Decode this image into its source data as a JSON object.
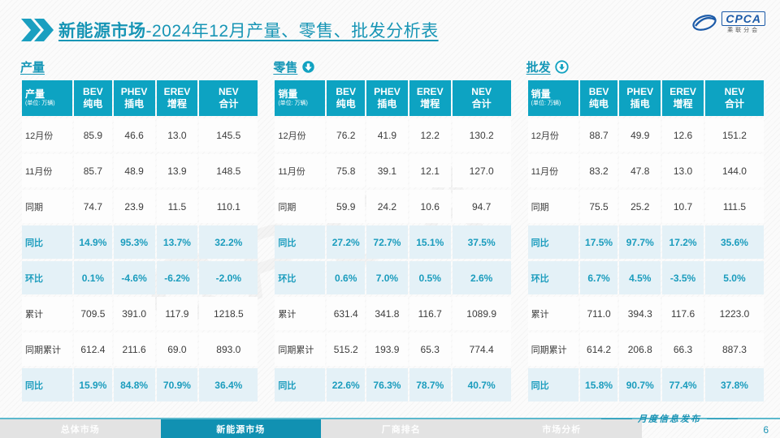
{
  "header": {
    "title_highlight": "新能源市场",
    "title_rest": "-2024年12月产量、零售、批发分析表"
  },
  "logo": {
    "name": "CPCA",
    "subtext": "乘联分会"
  },
  "colors": {
    "teal_header": "#0da3c2",
    "teal_title": "#1697b7",
    "highlight_bg": "#e4f1f7",
    "highlight_text": "#1a9cbd",
    "footer_tab_active": "#1191b2"
  },
  "watermark_text": "CPCA",
  "column_headers": [
    {
      "en": "BEV",
      "zh": "纯电"
    },
    {
      "en": "PHEV",
      "zh": "插电"
    },
    {
      "en": "EREV",
      "zh": "增程"
    },
    {
      "en": "NEV",
      "zh": "合计"
    }
  ],
  "tables": [
    {
      "section_title": "产量",
      "arrow_icon": "none",
      "unit_label": "产量",
      "unit_note": "(单位: 万辆)",
      "rows": [
        {
          "label": "12月份",
          "highlight": false,
          "values": [
            "85.9",
            "46.6",
            "13.0",
            "145.5"
          ]
        },
        {
          "label": "11月份",
          "highlight": false,
          "values": [
            "85.7",
            "48.9",
            "13.9",
            "148.5"
          ]
        },
        {
          "label": "同期",
          "highlight": false,
          "values": [
            "74.7",
            "23.9",
            "11.5",
            "110.1"
          ]
        },
        {
          "label": "同比",
          "highlight": true,
          "values": [
            "14.9%",
            "95.3%",
            "13.7%",
            "32.2%"
          ]
        },
        {
          "label": "环比",
          "highlight": true,
          "values": [
            "0.1%",
            "-4.6%",
            "-6.2%",
            "-2.0%"
          ]
        },
        {
          "label": "累计",
          "highlight": false,
          "values": [
            "709.5",
            "391.0",
            "117.9",
            "1218.5"
          ]
        },
        {
          "label": "同期累计",
          "highlight": false,
          "values": [
            "612.4",
            "211.6",
            "69.0",
            "893.0"
          ]
        },
        {
          "label": "同比",
          "highlight": true,
          "values": [
            "15.9%",
            "84.8%",
            "70.9%",
            "36.4%"
          ]
        }
      ]
    },
    {
      "section_title": "零售",
      "arrow_icon": "filled-circle-down-arrow",
      "unit_label": "销量",
      "unit_note": "(单位: 万辆)",
      "rows": [
        {
          "label": "12月份",
          "highlight": false,
          "values": [
            "76.2",
            "41.9",
            "12.2",
            "130.2"
          ]
        },
        {
          "label": "11月份",
          "highlight": false,
          "values": [
            "75.8",
            "39.1",
            "12.1",
            "127.0"
          ]
        },
        {
          "label": "同期",
          "highlight": false,
          "values": [
            "59.9",
            "24.2",
            "10.6",
            "94.7"
          ]
        },
        {
          "label": "同比",
          "highlight": true,
          "values": [
            "27.2%",
            "72.7%",
            "15.1%",
            "37.5%"
          ]
        },
        {
          "label": "环比",
          "highlight": true,
          "values": [
            "0.6%",
            "7.0%",
            "0.5%",
            "2.6%"
          ]
        },
        {
          "label": "累计",
          "highlight": false,
          "values": [
            "631.4",
            "341.8",
            "116.7",
            "1089.9"
          ]
        },
        {
          "label": "同期累计",
          "highlight": false,
          "values": [
            "515.2",
            "193.9",
            "65.3",
            "774.4"
          ]
        },
        {
          "label": "同比",
          "highlight": true,
          "values": [
            "22.6%",
            "76.3%",
            "78.7%",
            "40.7%"
          ]
        }
      ]
    },
    {
      "section_title": "批发",
      "arrow_icon": "outline-circle-down-arrow",
      "unit_label": "销量",
      "unit_note": "(单位: 万辆)",
      "rows": [
        {
          "label": "12月份",
          "highlight": false,
          "values": [
            "88.7",
            "49.9",
            "12.6",
            "151.2"
          ]
        },
        {
          "label": "11月份",
          "highlight": false,
          "values": [
            "83.2",
            "47.8",
            "13.0",
            "144.0"
          ]
        },
        {
          "label": "同期",
          "highlight": false,
          "values": [
            "75.5",
            "25.2",
            "10.7",
            "111.5"
          ]
        },
        {
          "label": "同比",
          "highlight": true,
          "values": [
            "17.5%",
            "97.7%",
            "17.2%",
            "35.6%"
          ]
        },
        {
          "label": "环比",
          "highlight": true,
          "values": [
            "6.7%",
            "4.5%",
            "-3.5%",
            "5.0%"
          ]
        },
        {
          "label": "累计",
          "highlight": false,
          "values": [
            "711.0",
            "394.3",
            "117.6",
            "1223.0"
          ]
        },
        {
          "label": "同期累计",
          "highlight": false,
          "values": [
            "614.2",
            "206.8",
            "66.3",
            "887.3"
          ]
        },
        {
          "label": "同比",
          "highlight": true,
          "values": [
            "15.8%",
            "90.7%",
            "77.4%",
            "37.8%"
          ]
        }
      ]
    }
  ],
  "footer": {
    "tabs": [
      {
        "label": "总体市场",
        "active": false
      },
      {
        "label": "新能源市场",
        "active": true
      },
      {
        "label": "厂商排名",
        "active": false
      },
      {
        "label": "市场分析",
        "active": false
      }
    ],
    "publication": "月度信息发布",
    "page_number": "6"
  }
}
